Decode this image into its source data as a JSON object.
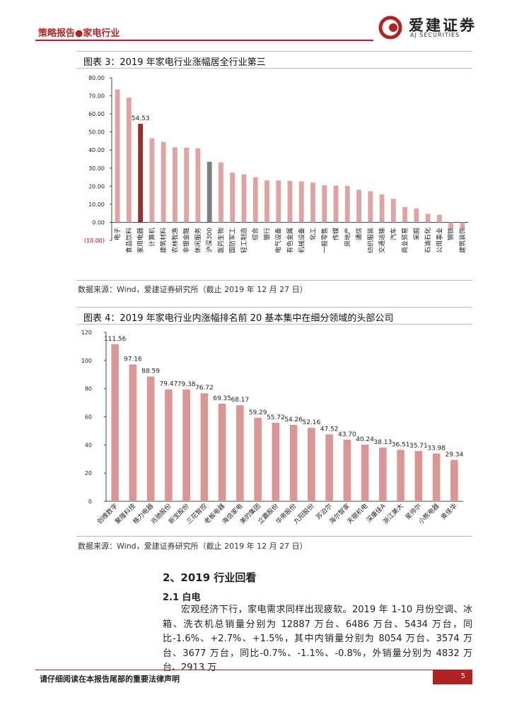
{
  "header": {
    "report": "策略报告●家电行业",
    "brand": "爱建证券",
    "brand_en": "AJ SECURITIES"
  },
  "chart_data": [
    {
      "type": "bar",
      "title": "图表 3：2019 年家电行业涨幅居全行业第三",
      "categories": [
        "电子",
        "食品饮料",
        "家用电器",
        "计算机",
        "建筑材料",
        "农林牧渔",
        "非银金融",
        "休闲服务",
        "沪深300",
        "医药生物",
        "国防军工",
        "轻工制造",
        "综合",
        "银行",
        "电气设备",
        "有色金属",
        "机械设备",
        "化工",
        "一般零售",
        "传媒",
        "房地产",
        "通信",
        "纺织服装",
        "交通运输",
        "汽车",
        "商业贸易",
        "采掘",
        "石油石化",
        "公用事业",
        "钢铁",
        "建筑装饰"
      ],
      "values": [
        73.5,
        69,
        54.53,
        46.5,
        44.5,
        41.5,
        41.3,
        41,
        33.5,
        33.2,
        27.5,
        26.5,
        25,
        23.2,
        23.2,
        23,
        22.7,
        22,
        20.5,
        20.3,
        20.2,
        18,
        17.2,
        15.5,
        13,
        8.5,
        7.7,
        4.7,
        4.2,
        -3.5,
        -3.5
      ],
      "value_labels": [
        null,
        null,
        "54.53",
        null,
        null,
        null,
        null,
        null,
        null,
        null,
        null,
        null,
        null,
        null,
        null,
        null,
        null,
        null,
        null,
        null,
        null,
        null,
        null,
        null,
        null,
        null,
        null,
        null,
        null,
        null,
        null
      ],
      "colors": [
        "#e0a3a2",
        "#e0a3a2",
        "#9b2d2e",
        "#e0a3a2",
        "#e0a3a2",
        "#e0a3a2",
        "#e0a3a2",
        "#e0a3a2",
        "#7f7f7f",
        "#e0a3a2",
        "#e0a3a2",
        "#e0a3a2",
        "#e0a3a2",
        "#e0a3a2",
        "#e0a3a2",
        "#e0a3a2",
        "#e0a3a2",
        "#e0a3a2",
        "#e0a3a2",
        "#e0a3a2",
        "#e0a3a2",
        "#e0a3a2",
        "#e0a3a2",
        "#e0a3a2",
        "#e0a3a2",
        "#e0a3a2",
        "#e0a3a2",
        "#e0a3a2",
        "#e0a3a2",
        "#e0a3a2",
        "#e0a3a2"
      ],
      "ylim": [
        -10,
        80
      ],
      "yticks": [
        {
          "value": -10,
          "label": "(10.00)"
        },
        {
          "value": 0,
          "label": "0.00"
        },
        {
          "value": 10,
          "label": "10.00"
        },
        {
          "value": 20,
          "label": "20.00"
        },
        {
          "value": 30,
          "label": "30.00"
        },
        {
          "value": 40,
          "label": "40.00"
        },
        {
          "value": 50,
          "label": "50.00"
        },
        {
          "value": 60,
          "label": "60.00"
        },
        {
          "value": 70,
          "label": "70.00"
        },
        {
          "value": 80,
          "label": "80.00"
        }
      ],
      "source": "数据来源：Wind，爱建证券研究所（截止 2019 年 12 月 27 日）"
    },
    {
      "type": "bar",
      "title": "图表 4：2019 年家电行业内涨幅排名前 20 基本集中在细分领域的头部公司",
      "categories": [
        "创维数字",
        "聚隆科技",
        "格力电器",
        "兆驰股份",
        "新宝股份",
        "三花智控",
        "老板电器",
        "海信家电",
        "美的集团",
        "立霸股份",
        "华帝股份",
        "九阳股份",
        "苏泊尔",
        "海尔智家",
        "天银机电",
        "深康佳A",
        "浙江美大",
        "星帅尔",
        "小熊电器",
        "奥佳华"
      ],
      "values": [
        111.56,
        97.16,
        88.59,
        79.47,
        79.38,
        76.72,
        69.35,
        68.17,
        59.29,
        55.72,
        54.26,
        52.16,
        47.52,
        43.7,
        40.24,
        38.13,
        36.51,
        35.71,
        33.98,
        29.34
      ],
      "value_labels": [
        "111.56",
        "97.16",
        "88.59",
        "79.47",
        "79.38",
        "76.72",
        "69.35",
        "68.17",
        "59.29",
        "55.72",
        "54.26",
        "52.16",
        "47.52",
        "43.70",
        "40.24",
        "38.13",
        "36.51",
        "35.71",
        "33.98",
        "29.34"
      ],
      "color": "#d99694",
      "ylim": [
        0,
        120
      ],
      "yticks": [
        0,
        20,
        40,
        60,
        80,
        100,
        120
      ],
      "source": "数据来源：Wind，爱建证券研究所（截止 2019 年 12 月 27 日）"
    }
  ],
  "section": {
    "title": "2、2019 行业回看",
    "subtitle": "2.1 白电",
    "paragraph": "宏观经济下行，家电需求同样出现疲软。2019 年 1-10 月份空调、冰箱、洗衣机总销量分别为 12887 万台、6486 万台、5434 万台，同比-1.6%、+2.7%、+1.5%，其中内销量分别为 8054 万台、3574 万台、3677 万台，同比-0.7%、-1.1%、-0.8%，外销量分别为 4832 万台、2913 万"
  },
  "footer": {
    "notice": "请仔细阅读在本报告尾部的重要法律声明",
    "page": "5"
  }
}
